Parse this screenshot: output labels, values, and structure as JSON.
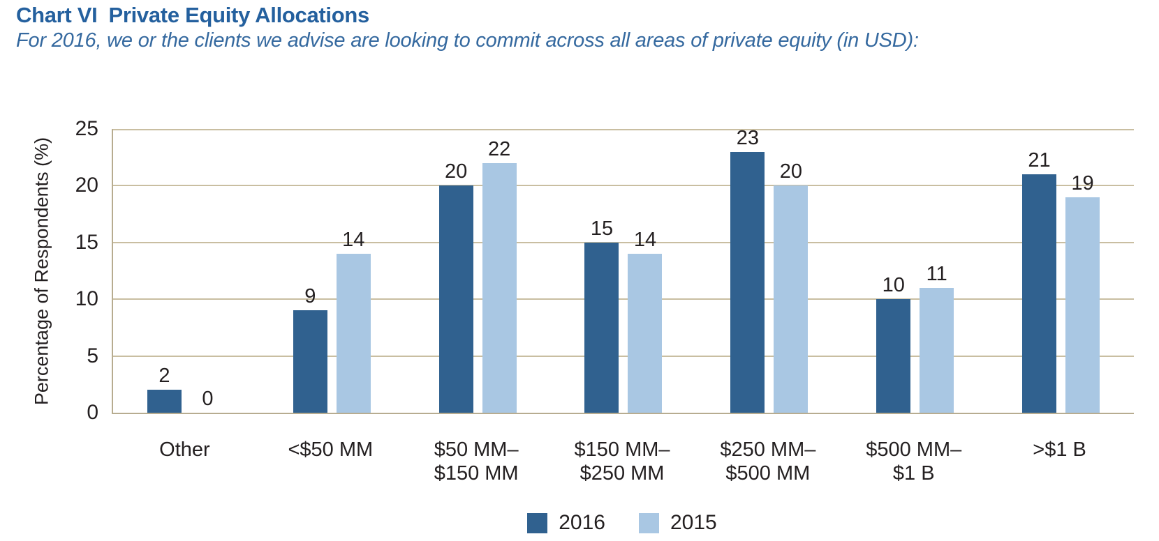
{
  "header": {
    "chart_label": "Chart VI",
    "title": "Private Equity Allocations",
    "subtitle": "For 2016, we or the clients we advise are looking to commit across all areas of private equity (in USD):"
  },
  "colors": {
    "title_blue": "#24609e",
    "subtitle_blue": "#35699f",
    "bar_2016": "#30618f",
    "bar_2015": "#a9c7e3",
    "gridline": "#c9bea1",
    "axis_line": "#b7ac90",
    "label_text": "#231f20"
  },
  "chart_data": {
    "type": "bar",
    "categories": [
      [
        "Other"
      ],
      [
        "<$50 MM"
      ],
      [
        "$50 MM–",
        "$150 MM"
      ],
      [
        "$150 MM–",
        "$250 MM"
      ],
      [
        "$250 MM–",
        "$500 MM"
      ],
      [
        "$500 MM–",
        "$1 B"
      ],
      [
        ">$1 B"
      ]
    ],
    "series": [
      {
        "name": "2016",
        "color": "#30618f",
        "values": [
          2,
          9,
          20,
          15,
          23,
          10,
          21
        ]
      },
      {
        "name": "2015",
        "color": "#a9c7e3",
        "values": [
          0,
          14,
          22,
          14,
          20,
          11,
          19
        ]
      }
    ],
    "ylabel": "Percentage of Respondents (%)",
    "ylim": [
      0,
      25
    ],
    "yticks": [
      0,
      5,
      10,
      15,
      20,
      25
    ],
    "grid": "horizontal",
    "bar_value_labels": true,
    "legend_position": "bottom"
  }
}
